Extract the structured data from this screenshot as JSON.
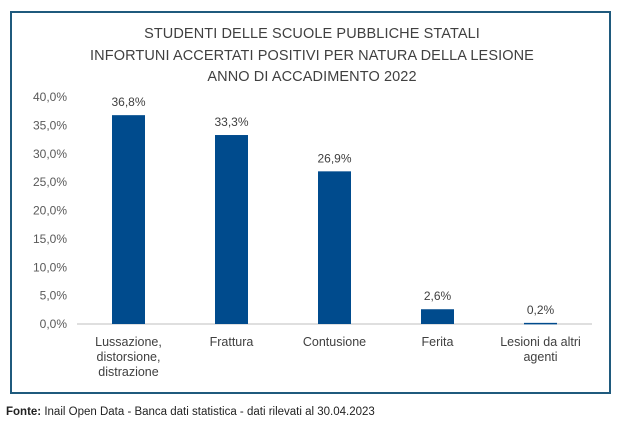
{
  "chart_data": {
    "type": "bar",
    "title_lines": [
      "STUDENTI DELLE SCUOLE PUBBLICHE STATALI",
      "INFORTUNI ACCERTATI POSITIVI PER NATURA DELLA LESIONE",
      "ANNO DI ACCADIMENTO 2022"
    ],
    "categories": [
      [
        "Lussazione,",
        "distorsione,",
        "distrazione"
      ],
      [
        "Frattura"
      ],
      [
        "Contusione"
      ],
      [
        "Ferita"
      ],
      [
        "Lesioni da altri",
        "agenti"
      ]
    ],
    "values": [
      36.8,
      33.3,
      26.9,
      2.6,
      0.2
    ],
    "data_labels": [
      "36,8%",
      "33,3%",
      "26,9%",
      "2,6%",
      "0,2%"
    ],
    "y_ticks": [
      "0,0%",
      "5,0%",
      "10,0%",
      "15,0%",
      "20,0%",
      "25,0%",
      "30,0%",
      "35,0%",
      "40,0%"
    ],
    "ylim": [
      0,
      40
    ],
    "grid": false,
    "bar_color": "#004b8d"
  },
  "source": {
    "label": "Fonte:",
    "text": " Inail Open Data - Banca dati statistica - dati rilevati al 30.04.2023"
  }
}
